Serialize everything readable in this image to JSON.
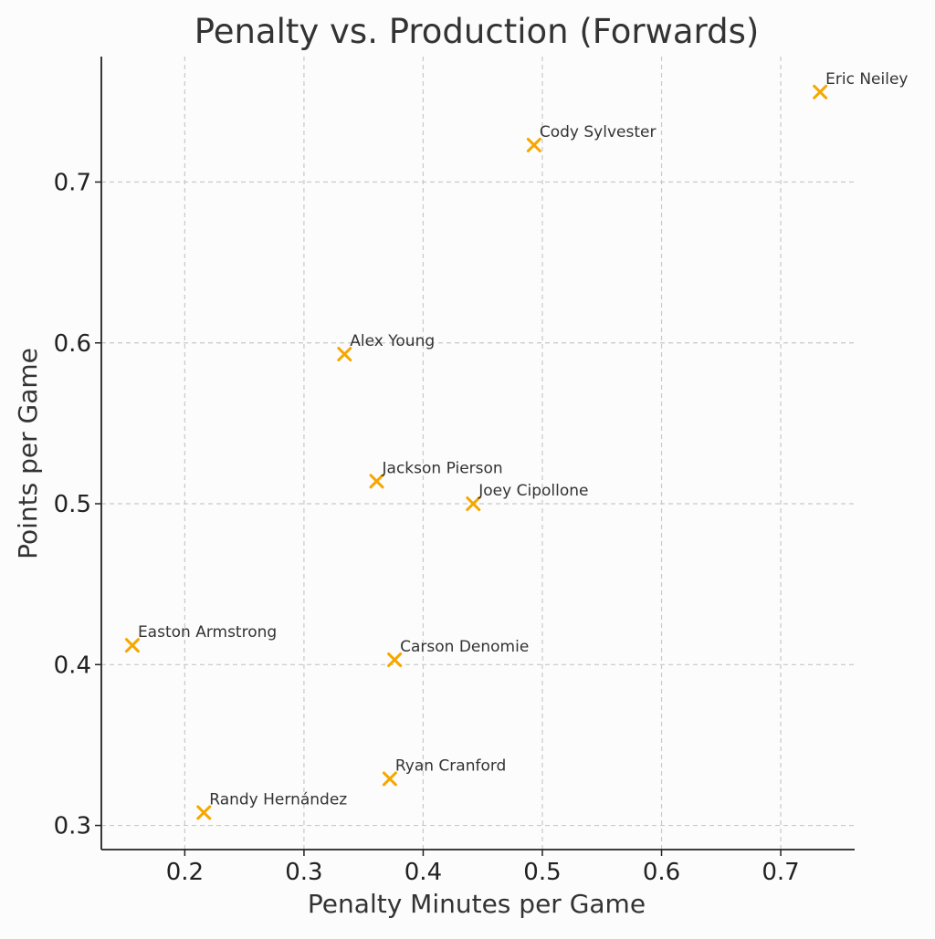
{
  "chart_data": {
    "type": "scatter",
    "title": "Penalty vs. Production (Forwards)",
    "xlabel": "Penalty Minutes per Game",
    "ylabel": "Points per Game",
    "xlim": [
      0.13,
      0.762
    ],
    "ylim": [
      0.285,
      0.778
    ],
    "x_ticks": [
      0.2,
      0.3,
      0.4,
      0.5,
      0.6,
      0.7
    ],
    "x_tick_labels": [
      "0.2",
      "0.3",
      "0.4",
      "0.5",
      "0.6",
      "0.7"
    ],
    "y_ticks": [
      0.3,
      0.4,
      0.5,
      0.6,
      0.7
    ],
    "y_tick_labels": [
      "0.3",
      "0.4",
      "0.5",
      "0.6",
      "0.7"
    ],
    "grid": true,
    "marker": "x",
    "marker_color": "#f5a700",
    "points": [
      {
        "label": "Eric Neiley",
        "x": 0.733,
        "y": 0.756
      },
      {
        "label": "Cody Sylvester",
        "x": 0.493,
        "y": 0.723
      },
      {
        "label": "Alex Young",
        "x": 0.334,
        "y": 0.593
      },
      {
        "label": "Jackson Pierson",
        "x": 0.361,
        "y": 0.514
      },
      {
        "label": "Joey Cipollone",
        "x": 0.442,
        "y": 0.5
      },
      {
        "label": "Easton Armstrong",
        "x": 0.156,
        "y": 0.412
      },
      {
        "label": "Carson Denomie",
        "x": 0.376,
        "y": 0.403
      },
      {
        "label": "Ryan Cranford",
        "x": 0.372,
        "y": 0.329
      },
      {
        "label": "Randy Hernández",
        "x": 0.216,
        "y": 0.308
      }
    ]
  }
}
